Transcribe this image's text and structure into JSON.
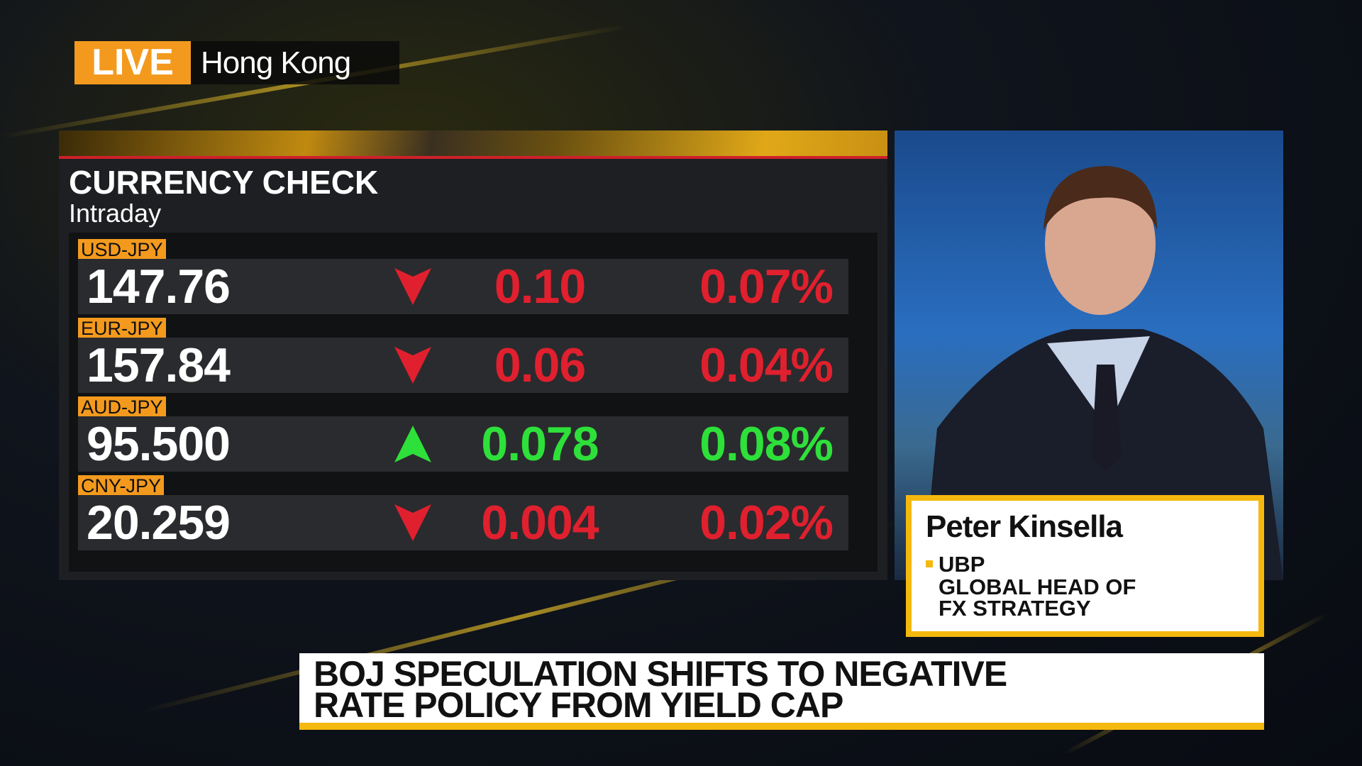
{
  "live_badge": "LIVE",
  "location": "Hong Kong",
  "panel": {
    "title": "CURRENCY CHECK",
    "subtitle": "Intraday",
    "rows": [
      {
        "pair": "USD-JPY",
        "price": "147.76",
        "direction": "down",
        "change": "0.10",
        "percent": "0.07%"
      },
      {
        "pair": "EUR-JPY",
        "price": "157.84",
        "direction": "down",
        "change": "0.06",
        "percent": "0.04%"
      },
      {
        "pair": "AUD-JPY",
        "price": "95.500",
        "direction": "up",
        "change": "0.078",
        "percent": "0.08%"
      },
      {
        "pair": "CNY-JPY",
        "price": "20.259",
        "direction": "down",
        "change": "0.004",
        "percent": "0.02%"
      }
    ]
  },
  "guest": {
    "name": "Peter Kinsella",
    "organization": "UBP",
    "role_lines": [
      "GLOBAL HEAD OF",
      "FX STRATEGY"
    ]
  },
  "headline": {
    "lines": [
      "BOJ SPECULATION SHIFTS TO NEGATIVE",
      "RATE POLICY FROM YIELD CAP"
    ]
  }
}
